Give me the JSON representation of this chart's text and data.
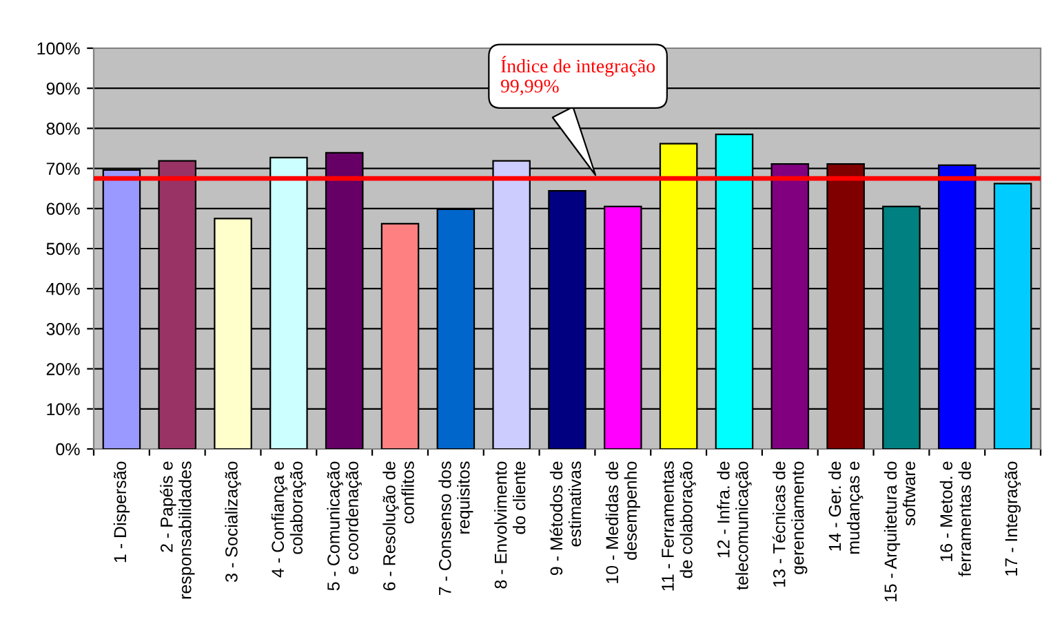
{
  "chart_data": {
    "type": "bar",
    "categories": [
      "1 - Dispersão",
      "2 - Papéis e\nresponsabilidades",
      "3 - Socialização",
      "4 - Confiança e\ncolaboração",
      "5 - Comunicação\ne coordenação",
      "6 - Resolução de\nconflitos",
      "7 - Consenso dos\nrequisitos",
      "8 - Envolvimento\ndo cliente",
      "9 - Métodos de\nestimativas",
      "10 - Medidas de\ndesempenho",
      "11 - Ferramentas\nde colaboração",
      "12 - Infra. de\ntelecomunicação",
      "13 - Técnicas de\ngerenciamento",
      "14 - Ger. de\nmudanças e",
      "15 - Arquitetura do\nsoftware",
      "16 - Metod. e\nferramentas de",
      "17 - Integração"
    ],
    "values": [
      69.6,
      71.9,
      57.5,
      72.7,
      73.9,
      56.2,
      59.8,
      71.9,
      64.4,
      60.5,
      76.2,
      78.5,
      71.1,
      71.1,
      60.5,
      70.8,
      66.2
    ],
    "colors": [
      "#9999ff",
      "#993366",
      "#ffffcc",
      "#ccffff",
      "#660066",
      "#ff8080",
      "#0066cc",
      "#ccccff",
      "#000080",
      "#ff00ff",
      "#ffff00",
      "#00ffff",
      "#800080",
      "#800000",
      "#008080",
      "#0000ff",
      "#00ccff"
    ],
    "ylim": [
      0,
      100
    ],
    "yticks": [
      {
        "value": 0,
        "label": "0%"
      },
      {
        "value": 10,
        "label": "10%"
      },
      {
        "value": 20,
        "label": "20%"
      },
      {
        "value": 30,
        "label": "30%"
      },
      {
        "value": 40,
        "label": "40%"
      },
      {
        "value": 50,
        "label": "50%"
      },
      {
        "value": 60,
        "label": "60%"
      },
      {
        "value": 70,
        "label": "70%"
      },
      {
        "value": 80,
        "label": "80%"
      },
      {
        "value": 90,
        "label": "90%"
      },
      {
        "value": 100,
        "label": "100%"
      }
    ],
    "grid": "y",
    "ref_lines": [
      {
        "axis": "y",
        "value": 67.5,
        "label": "Índice de integração\n99,99%",
        "color": "#ff0000"
      }
    ]
  }
}
